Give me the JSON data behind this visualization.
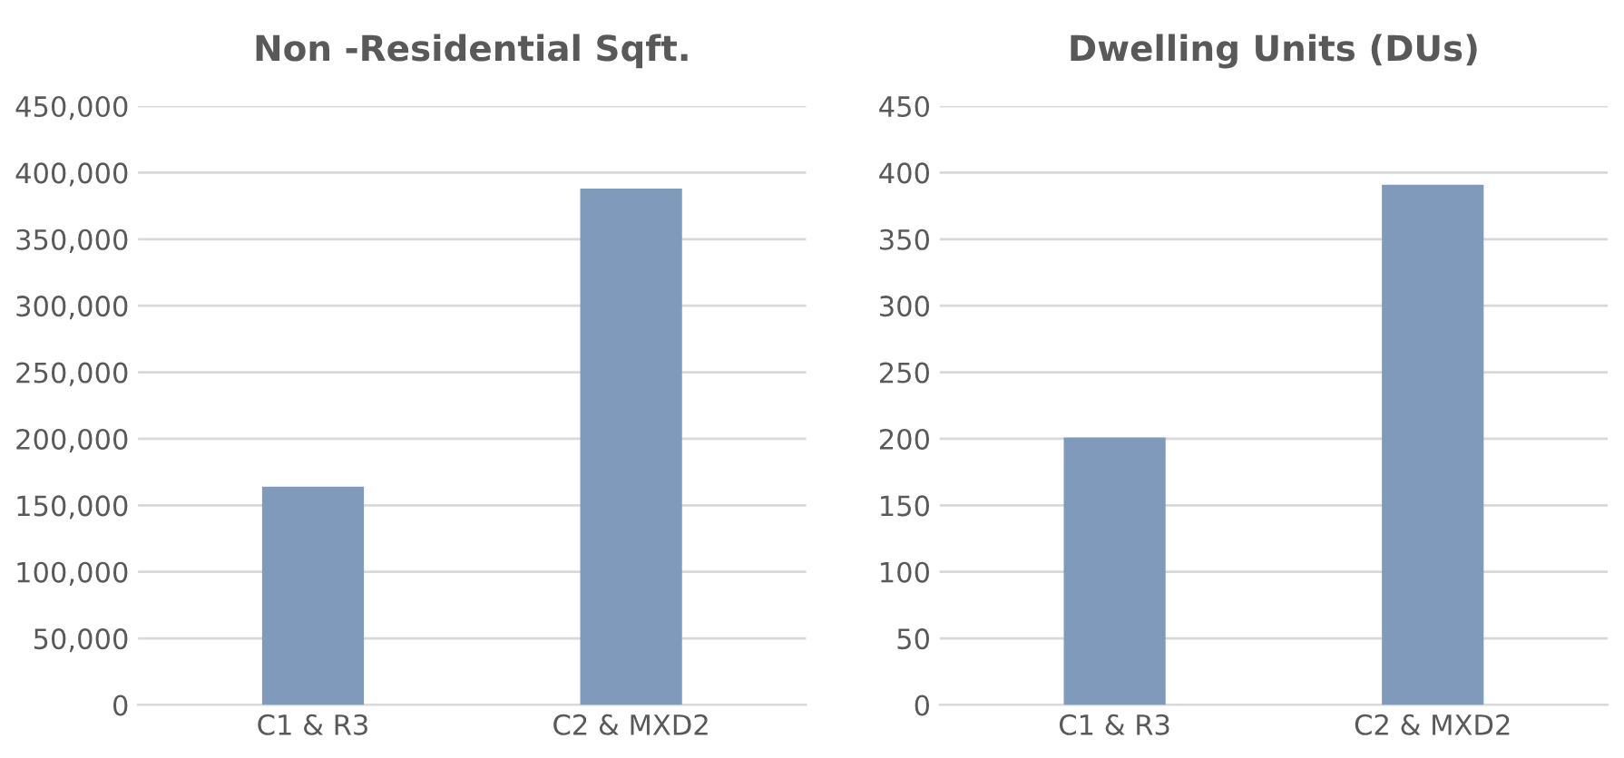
{
  "chart_data": [
    {
      "type": "bar",
      "title": "Non -Residential Sqft.",
      "categories": [
        "C1 & R3",
        "C2 & MXD2"
      ],
      "values": [
        164000,
        388000
      ],
      "color": "#7f9aba",
      "ylim": [
        0,
        450000
      ],
      "yticks": [
        {
          "value": 0,
          "label": "0"
        },
        {
          "value": 50000,
          "label": "50,000"
        },
        {
          "value": 100000,
          "label": "100,000"
        },
        {
          "value": 150000,
          "label": "150,000"
        },
        {
          "value": 200000,
          "label": "200,000"
        },
        {
          "value": 250000,
          "label": "250,000"
        },
        {
          "value": 300000,
          "label": "300,000"
        },
        {
          "value": 350000,
          "label": "350,000"
        },
        {
          "value": 400000,
          "label": "400,000"
        },
        {
          "value": 450000,
          "label": "450,000"
        }
      ],
      "grid": "y"
    },
    {
      "type": "bar",
      "title": "Dwelling Units (DUs)",
      "categories": [
        "C1 & R3",
        "C2 & MXD2"
      ],
      "values": [
        201,
        391
      ],
      "color": "#7f9aba",
      "ylim": [
        0,
        450
      ],
      "yticks": [
        0,
        50,
        100,
        150,
        200,
        250,
        300,
        350,
        400,
        450
      ],
      "grid": "y"
    }
  ]
}
